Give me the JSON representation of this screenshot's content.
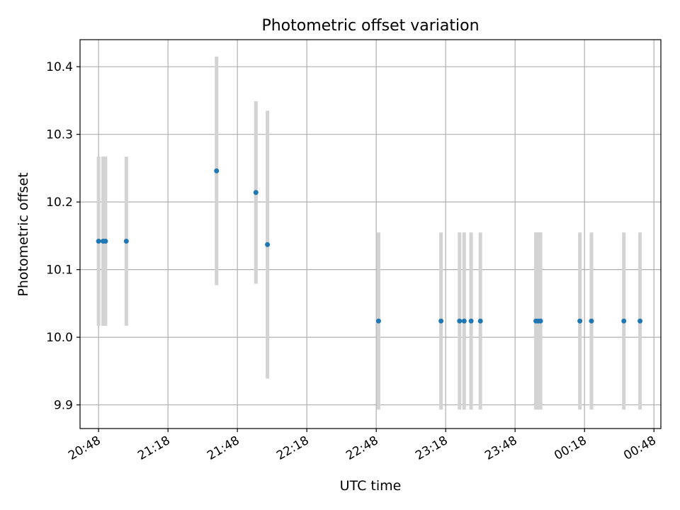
{
  "chart_data": {
    "type": "scatter",
    "title": "Photometric offset variation",
    "xlabel": "UTC time",
    "ylabel": "Photometric offset",
    "x_ticks": [
      "20:48",
      "21:18",
      "21:48",
      "22:18",
      "22:48",
      "23:18",
      "23:48",
      "00:18",
      "00:48"
    ],
    "y_ticks": [
      "9.9",
      "10.0",
      "10.1",
      "10.2",
      "10.3",
      "10.4"
    ],
    "xlim": [
      "20:40",
      "00:51"
    ],
    "ylim": [
      9.865,
      10.44
    ],
    "grid": true,
    "errorbar_color": "#d3d3d3",
    "marker_color": "#1f77b4",
    "points": [
      {
        "x": "20:48",
        "y": 10.142,
        "err": 0.125
      },
      {
        "x": "20:50",
        "y": 10.142,
        "err": 0.125
      },
      {
        "x": "20:51",
        "y": 10.142,
        "err": 0.125
      },
      {
        "x": "21:00",
        "y": 10.142,
        "err": 0.125
      },
      {
        "x": "21:39",
        "y": 10.246,
        "err": 0.169
      },
      {
        "x": "21:56",
        "y": 10.214,
        "err": 0.135
      },
      {
        "x": "22:01",
        "y": 10.137,
        "err": 0.198
      },
      {
        "x": "22:49",
        "y": 10.024,
        "err": 0.131
      },
      {
        "x": "23:16",
        "y": 10.024,
        "err": 0.131
      },
      {
        "x": "23:24",
        "y": 10.024,
        "err": 0.131
      },
      {
        "x": "23:26",
        "y": 10.024,
        "err": 0.131
      },
      {
        "x": "23:29",
        "y": 10.024,
        "err": 0.131
      },
      {
        "x": "23:33",
        "y": 10.024,
        "err": 0.131
      },
      {
        "x": "23:57",
        "y": 10.024,
        "err": 0.131
      },
      {
        "x": "23:58",
        "y": 10.024,
        "err": 0.131
      },
      {
        "x": "23:59",
        "y": 10.024,
        "err": 0.131
      },
      {
        "x": "00:16",
        "y": 10.024,
        "err": 0.131
      },
      {
        "x": "00:21",
        "y": 10.024,
        "err": 0.131
      },
      {
        "x": "00:35",
        "y": 10.024,
        "err": 0.131
      },
      {
        "x": "00:42",
        "y": 10.024,
        "err": 0.131
      }
    ]
  }
}
